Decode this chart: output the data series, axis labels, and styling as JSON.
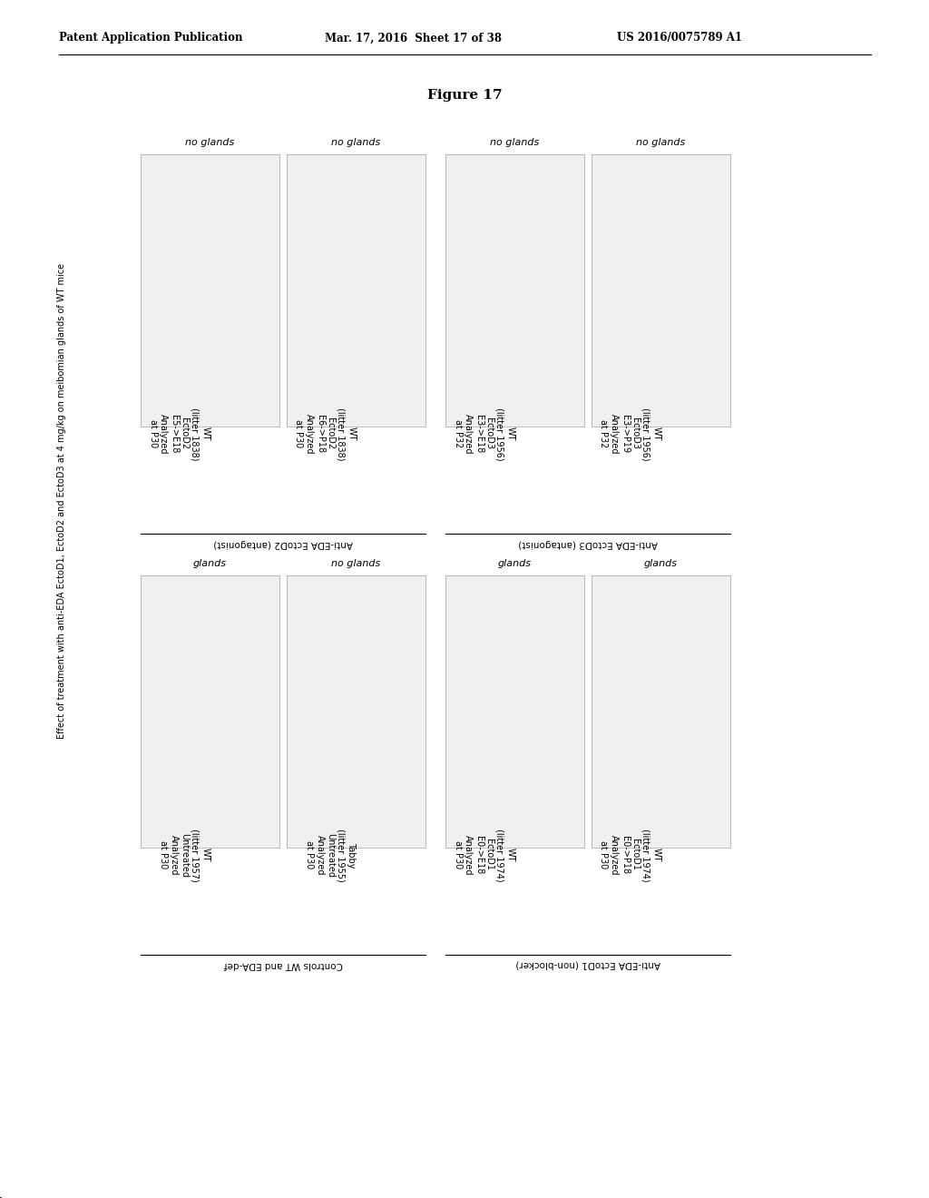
{
  "header_left": "Patent Application Publication",
  "header_mid": "Mar. 17, 2016  Sheet 17 of 38",
  "header_right": "US 2016/0075789 A1",
  "figure_title": "Figure 17",
  "background_color": "#ffffff",
  "top_row_labels": [
    "no glands",
    "no glands",
    "no glands",
    "no glands"
  ],
  "bottom_row_labels": [
    "glands",
    "no glands",
    "glands",
    "glands"
  ],
  "col_labels_top": [
    "WT\n(litter 1838)\nEctoD2\nE5->E18\nAnalyzed\nat P30",
    "WT\n(litter 1838)\nEctoD2\nE6->P18\nAnalyzed\nat P30",
    "WT\n(litter 1956)\nEctoD3\nE3->E18\nAnalyzed\nat P32",
    "WT\n(litter 1956)\nEctoD3\nE3->P19\nAnalyzed\nat P32"
  ],
  "col_labels_bottom": [
    "WT\n(litter 1957)\nUntreated\nAnalyzed\nat P30",
    "Tabby\n(litter 1955)\nUntreated\nAnalyzed\nat P30",
    "WT\n(litter 1974)\nEctoD1\nE0->E18\nAnalyzed\nat P30",
    "WT\n(litter 1974)\nEctoD1\nE0->P18\nAnalyzed\nat P30"
  ],
  "group_label_top_left": "Anti-EDA EctoD2 (antagonist)",
  "group_label_top_right": "Anti-EDA EctoD3 (antagonist)",
  "group_label_bot_left": "Controls WT and EDA-def",
  "group_label_bot_right": "Anti-EDA EctoD1 (non-blocker)",
  "left_side_label": "Effect of treatment with anti-EDA EctoD1, EctoD2 and EctoD3 at 4 mg/kg on meibomian glands of WT mice"
}
